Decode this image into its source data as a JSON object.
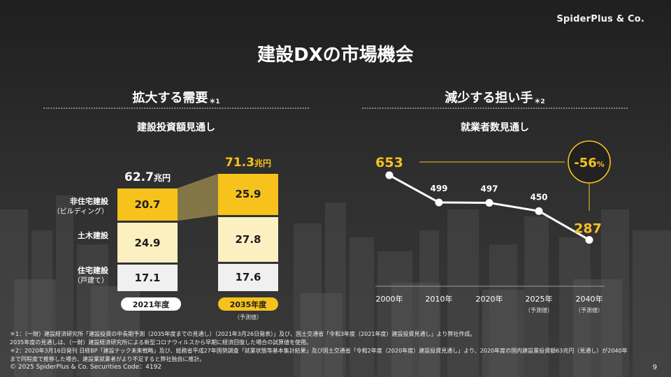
{
  "brand": "SpiderPlus & Co.",
  "title": "建設DXの市場機会",
  "left": {
    "heading": "拡大する需要",
    "heading_note": "＊1",
    "subtitle": "建設投資額見通し",
    "categories": [
      {
        "label": "非住宅建設",
        "sub": "（ビルディング）"
      },
      {
        "label": "土木建設",
        "sub": ""
      },
      {
        "label": "住宅建設",
        "sub": "（戸建て）"
      }
    ],
    "years": [
      "2021年度",
      "2035年度"
    ],
    "forecast_note": "（予測値）",
    "unit": "兆円"
  },
  "right": {
    "heading": "減少する担い手",
    "heading_note": "＊2",
    "subtitle": "就業者数見通し",
    "change_label": "-56",
    "change_unit": "%",
    "forecast_note": "（予測値）"
  },
  "chart_data": [
    {
      "type": "bar",
      "title": "建設投資額見通し",
      "categories": [
        "2021年度",
        "2035年度"
      ],
      "unit": "兆円",
      "totals": [
        62.7,
        71.3
      ],
      "series": [
        {
          "name": "住宅建設（戸建て）",
          "values": [
            17.1,
            17.6
          ]
        },
        {
          "name": "土木建設",
          "values": [
            24.9,
            27.8
          ]
        },
        {
          "name": "非住宅建設（ビルディング）",
          "values": [
            20.7,
            25.9
          ]
        }
      ]
    },
    {
      "type": "line",
      "title": "就業者数見通し",
      "x": [
        "2000年",
        "2010年",
        "2020年",
        "2025年",
        "2040年"
      ],
      "values": [
        653,
        499,
        497,
        450,
        287
      ]
    }
  ],
  "colors": {
    "accent": "#f8c21d",
    "residential": "#f0f0f0",
    "civil": "#fdf0c0",
    "nonresidential": "#f8c21d",
    "line": "#ffffff"
  },
  "footnotes": [
    "＊1：（一財）建設経済研究所「建設投資の中長期予測（2035年度までの見通し）（2021年3月26日発表）」及び、国土交通省「令和3年度（2021年度）建設投資見通し」より弊社作成。",
    "2035年度の見通しは、（一財）建設経済研究所による新型コロナウィルスから早期に経済回復した場合の試算値を使用。",
    "＊2：2020年3月16日発刊 日経BP「建設テック未来戦略」及び、総務省平成27年国勢調査「就業状態等基本集計結果」及び国土交通省「令和2年度（2020年度）建設投資見通し」より、2020年度の国内建設業投資額63兆円（見通し）が2040年",
    "まで同程度で推移した場合、建設業就業者がより不足すると弊社独自に推計。"
  ],
  "copyright": "© 2025 SpiderPlus & Co.   Securities Code：4192",
  "page_number": "9"
}
